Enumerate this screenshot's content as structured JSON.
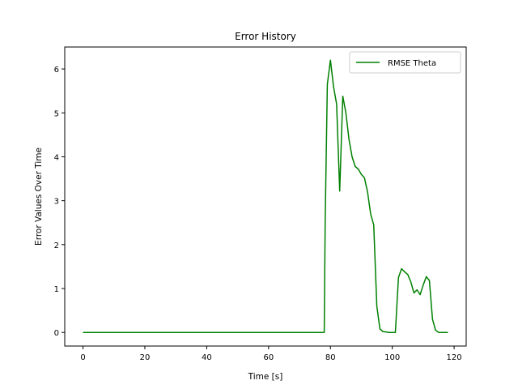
{
  "chart_data": {
    "type": "line",
    "title": "Error History",
    "xlabel": "Time [s]",
    "ylabel": "Error Values Over Time",
    "xlim": [
      -5.9,
      123.9
    ],
    "ylim": [
      -0.31,
      6.5
    ],
    "xticks": [
      0,
      20,
      40,
      60,
      80,
      100,
      120
    ],
    "yticks": [
      0,
      1,
      2,
      3,
      4,
      5,
      6
    ],
    "grid": false,
    "legend_position": "top-right",
    "series": [
      {
        "name": "RMSE Theta",
        "color": "#008000",
        "x": [
          0,
          4,
          8,
          12,
          16,
          20,
          24,
          28,
          32,
          36,
          40,
          44,
          48,
          52,
          56,
          60,
          64,
          68,
          72,
          76,
          78,
          78.3,
          79,
          80,
          81,
          82,
          83,
          84,
          85,
          86,
          87,
          88,
          89,
          90,
          91,
          92,
          93,
          94,
          95,
          96,
          97,
          98,
          99,
          100,
          101,
          102,
          103,
          104,
          105,
          106,
          107,
          108,
          109,
          110,
          111,
          112,
          113,
          114,
          115,
          116,
          117,
          118
        ],
        "y": [
          0,
          0,
          0,
          0,
          0,
          0,
          0,
          0,
          0,
          0,
          0,
          0,
          0,
          0,
          0,
          0,
          0,
          0,
          0,
          0,
          0,
          2.5,
          5.65,
          6.2,
          5.6,
          5.2,
          3.22,
          5.38,
          5.0,
          4.4,
          4.0,
          3.78,
          3.72,
          3.6,
          3.52,
          3.2,
          2.7,
          2.45,
          0.6,
          0.08,
          0.02,
          0.01,
          0.0,
          0.0,
          0.0,
          1.25,
          1.45,
          1.38,
          1.32,
          1.15,
          0.9,
          0.97,
          0.86,
          1.08,
          1.27,
          1.18,
          0.3,
          0.05,
          0.0,
          0.0,
          0.0,
          0.0
        ]
      }
    ]
  }
}
